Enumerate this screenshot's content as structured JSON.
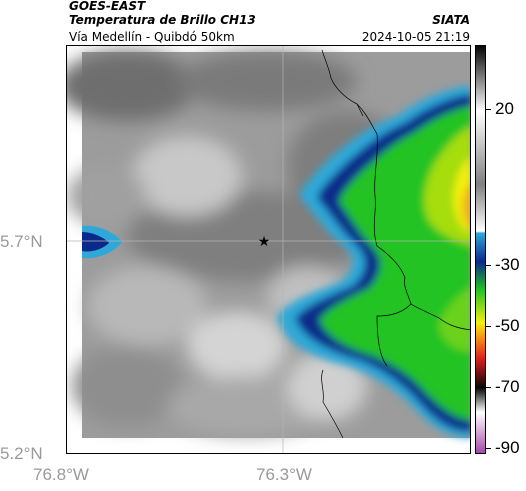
{
  "header": {
    "satellite": "GOES-EAST",
    "product": "Temperatura de Brillo CH13",
    "organization": "SIATA",
    "location": "Vía Medellín - Quibdó 50km",
    "timestamp": "2024-10-05 21:19"
  },
  "map": {
    "lat_labels": [
      "5.7°N",
      "5.2°N"
    ],
    "lon_labels": [
      "76.8°W",
      "76.3°W"
    ],
    "marker": "star-icon"
  },
  "colorbar": {
    "labels": [
      "20",
      "-30",
      "-50",
      "-70",
      "-90"
    ],
    "colors": {
      "warm": "#808080",
      "cyan": "#2fa8d8",
      "blue": "#0a2a8a",
      "green": "#22c323",
      "yellow": "#f2ef10",
      "orange": "#f58a14",
      "red": "#d81e1e",
      "black": "#050505",
      "purple": "#a24aa8"
    }
  }
}
